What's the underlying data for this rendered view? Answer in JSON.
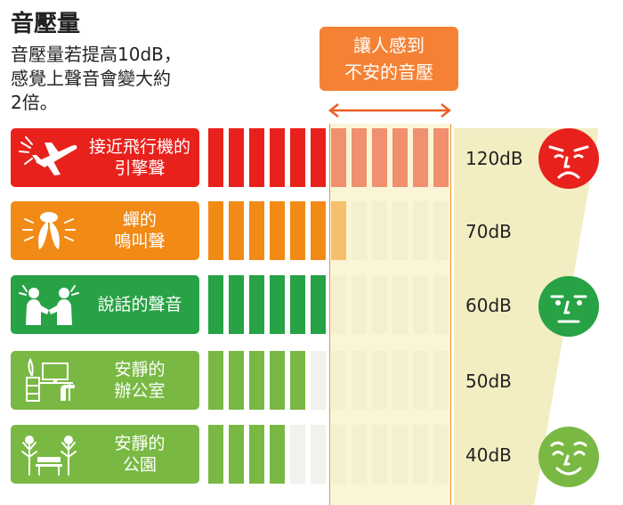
{
  "header": {
    "title": "音壓量",
    "intro_lines": [
      "音壓量若提高10dB，",
      "感覺上聲音會變大約",
      "2倍。"
    ]
  },
  "unsafe_zone": {
    "label_lines": [
      "讓人感到",
      "不安的音壓"
    ],
    "color": "#f58234"
  },
  "colors": {
    "red": "#e8211c",
    "orange": "#f28a16",
    "green": "#27a244",
    "light_green": "#79b943",
    "pale": "#f1f1ee",
    "band": "#f6ecb4",
    "wedge": "#f3edc2"
  },
  "scale": {
    "total_segments": 12
  },
  "rows": [
    {
      "label_lines": [
        "接近飛行機的",
        "引擎聲"
      ],
      "db": "120dB",
      "db_value": 120,
      "lit_segments": 12,
      "icon": "airplane-icon",
      "face": "unhappy"
    },
    {
      "label_lines": [
        "蟬的",
        "鳴叫聲"
      ],
      "db": "70dB",
      "db_value": 70,
      "lit_segments": 7,
      "icon": "cicada-icon",
      "face": null
    },
    {
      "label_lines": [
        "說話的聲音"
      ],
      "db": "60dB",
      "db_value": 60,
      "lit_segments": 6,
      "icon": "talking-people-icon",
      "face": "neutral"
    },
    {
      "label_lines": [
        "安靜的",
        "辦公室"
      ],
      "db": "50dB",
      "db_value": 50,
      "lit_segments": 5,
      "icon": "office-desk-icon",
      "face": null
    },
    {
      "label_lines": [
        "安靜的",
        "公園"
      ],
      "db": "40dB",
      "db_value": 40,
      "lit_segments": 4,
      "icon": "park-bench-icon",
      "face": "happy"
    }
  ]
}
